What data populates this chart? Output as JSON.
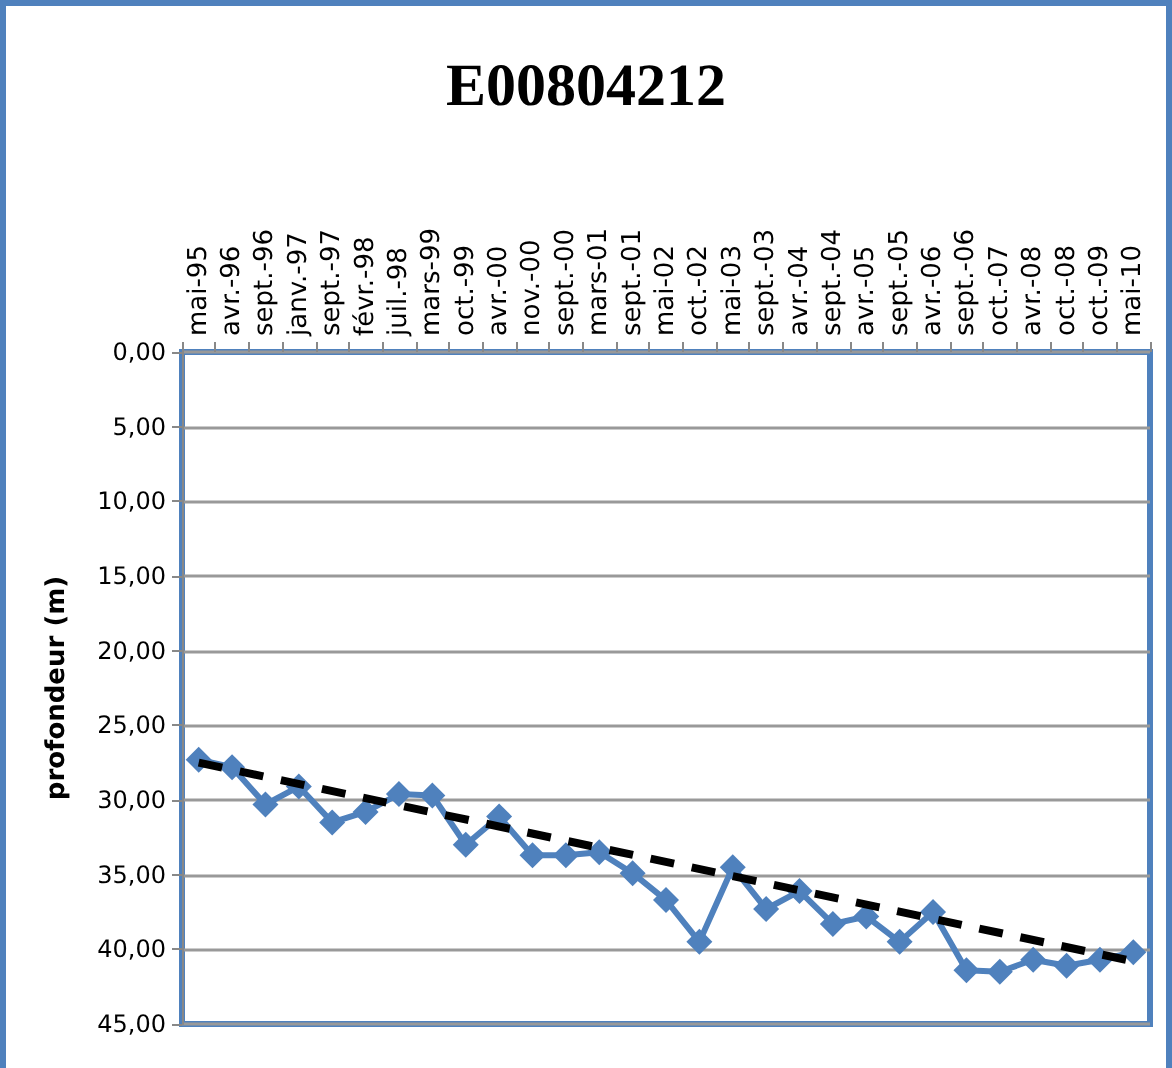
{
  "chart_data": {
    "type": "line",
    "title": "E00804212",
    "ylabel": "profondeur (m)",
    "categories": [
      "mai-95",
      "avr.-96",
      "sept.-96",
      "janv.-97",
      "sept.-97",
      "févr.-98",
      "juil.-98",
      "mars-99",
      "oct.-99",
      "avr.-00",
      "nov.-00",
      "sept.-00",
      "mars-01",
      "sept.-01",
      "mai-02",
      "oct.-02",
      "mai-03",
      "sept.-03",
      "avr.-04",
      "sept.-04",
      "avr.-05",
      "sept.-05",
      "avr.-06",
      "sept.-06",
      "oct.-07",
      "avr.-08",
      "oct.-08",
      "oct.-09",
      "mai-10"
    ],
    "series": [
      {
        "color": "#4f81bd",
        "marker": "diamond",
        "line_style": "solid",
        "values": [
          27.3,
          27.8,
          30.3,
          29.1,
          31.5,
          30.8,
          29.6,
          29.7,
          33.0,
          31.1,
          33.7,
          33.7,
          33.5,
          34.9,
          36.7,
          39.5,
          34.5,
          37.3,
          36.1,
          38.3,
          37.8,
          39.5,
          37.5,
          41.4,
          41.5,
          40.7,
          41.1,
          40.7,
          40.2
        ]
      },
      {
        "type": "line",
        "color": "#000000",
        "marker": "none",
        "line_style": "dashed",
        "x": [
          "mai-95",
          "mai-10"
        ],
        "values": [
          27.5,
          40.8
        ]
      }
    ],
    "ylim": [
      45,
      0
    ],
    "yticks": [
      {
        "value": 0,
        "label": "0,00"
      },
      {
        "value": 5,
        "label": "5,00"
      },
      {
        "value": 10,
        "label": "10,00"
      },
      {
        "value": 15,
        "label": "15,00"
      },
      {
        "value": 20,
        "label": "20,00"
      },
      {
        "value": 25,
        "label": "25,00"
      },
      {
        "value": 30,
        "label": "30,00"
      },
      {
        "value": 35,
        "label": "35,00"
      },
      {
        "value": 40,
        "label": "40,00"
      },
      {
        "value": 45,
        "label": "45,00"
      }
    ],
    "grid": "y"
  }
}
